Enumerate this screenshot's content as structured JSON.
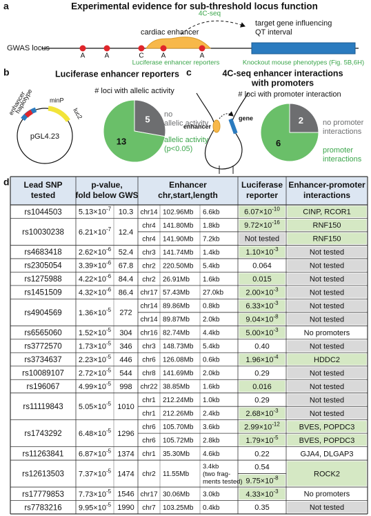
{
  "panel_a": {
    "label": "a",
    "title": "Experimental evidence for sub-threshold locus function",
    "gwas_locus": "GWAS locus",
    "alleles": [
      "A",
      "A",
      "C",
      "A",
      "A"
    ],
    "enhancer": "cardiac enhancer",
    "fourc": "4C-seq",
    "target": [
      "target gene influencing",
      "QT interval"
    ],
    "luc_label": "Luciferase enhancer reporters",
    "ko_label": "Knockout mouse phenotypes (Fig. 5B,6H)"
  },
  "panel_b": {
    "label": "b",
    "title": "Luciferase enhancer reporters",
    "plasmid": {
      "enhancer": [
        "enhancer",
        "haplotype"
      ],
      "minp": "minP",
      "luc2": "luc2",
      "name": "pGL4.23"
    },
    "pie": {
      "title": "# loci with allelic activity",
      "values": [
        5,
        13
      ],
      "colors": [
        "#6d6e70",
        "#6abf69"
      ],
      "labels": [
        [
          "no",
          "allelic activity"
        ],
        [
          "allelic activity",
          "(p<0.05)"
        ]
      ],
      "label_colors": [
        "#6d6e70",
        "#3aa54a"
      ]
    }
  },
  "panel_c": {
    "label": "c",
    "title": [
      "4C-seq enhancer interactions",
      "with promoters"
    ],
    "enhancer": "enhancer",
    "gene": "gene",
    "pie": {
      "title": "# loci with promoter interaction",
      "values": [
        2,
        6
      ],
      "colors": [
        "#6d6e70",
        "#6abf69"
      ],
      "labels": [
        [
          "no promoter",
          "interactions"
        ],
        [
          "promoter",
          "interactions"
        ]
      ],
      "label_colors": [
        "#6d6e70",
        "#3aa54a"
      ]
    }
  },
  "panel_d": {
    "label": "d",
    "headers": [
      [
        "Lead SNP",
        "tested"
      ],
      [
        "p-value,",
        "fold below GWS"
      ],
      [
        "Enhancer",
        "chr,start,length"
      ],
      [
        "Luciferase",
        "reporter"
      ],
      [
        "Enhancer-promoter",
        "interactions"
      ]
    ],
    "rows": [
      {
        "snp": "rs1044503",
        "p": [
          "5.13×10",
          "-7"
        ],
        "fold": 10.3,
        "sub": [
          {
            "chr": "chr14",
            "start": "102.96Mb",
            "length": "6.6kb",
            "luc": [
              {
                "value": [
                  "6.07×10",
                  "-10"
                ],
                "fill": "#d5e8c4"
              }
            ],
            "int": {
              "text": "CINP, RCOR1",
              "fill": "#d5e8c4"
            }
          }
        ]
      },
      {
        "snp": "rs10030238",
        "p": [
          "6.21×10",
          "-7"
        ],
        "fold": 12.4,
        "sub": [
          {
            "chr": "chr4",
            "start": "141.80Mb",
            "length": "1.8kb",
            "luc": [
              {
                "value": [
                  "9.72×10",
                  "-16"
                ],
                "fill": "#d5e8c4"
              }
            ],
            "int": {
              "text": "RNF150",
              "fill": "#d5e8c4"
            }
          },
          {
            "chr": "chr4",
            "start": "141.90Mb",
            "length": "7.2kb",
            "luc": [
              {
                "value": "Not tested",
                "fill": "#d9d9d9"
              }
            ],
            "int": {
              "text": "RNF150",
              "fill": "#d5e8c4"
            }
          }
        ]
      },
      {
        "snp": "rs4683418",
        "p": [
          "2.62×10",
          "-6"
        ],
        "fold": 52.4,
        "sub": [
          {
            "chr": "chr3",
            "start": "141.74Mb",
            "length": "1.4kb",
            "luc": [
              {
                "value": [
                  "1.10×10",
                  "-3"
                ],
                "fill": "#d5e8c4"
              }
            ],
            "int": {
              "text": "Not tested",
              "fill": "#d9d9d9"
            }
          }
        ]
      },
      {
        "snp": "rs2305054",
        "p": [
          "3.39×10",
          "-6"
        ],
        "fold": 67.8,
        "sub": [
          {
            "chr": "chr2",
            "start": "220.50Mb",
            "length": "5.4kb",
            "luc": [
              {
                "value": "0.064",
                "fill": "#ffffff"
              }
            ],
            "int": {
              "text": "Not tested",
              "fill": "#d9d9d9"
            }
          }
        ]
      },
      {
        "snp": "rs1275988",
        "p": [
          "4.22×10",
          "-6"
        ],
        "fold": 84.4,
        "sub": [
          {
            "chr": "chr2",
            "start": "26.91Mb",
            "length": "1.6kb",
            "luc": [
              {
                "value": "0.015",
                "fill": "#d5e8c4"
              }
            ],
            "int": {
              "text": "Not tested",
              "fill": "#d9d9d9"
            }
          }
        ]
      },
      {
        "snp": "rs1451509",
        "p": [
          "4.32×10",
          "-6"
        ],
        "fold": 86.4,
        "sub": [
          {
            "chr": "chr17",
            "start": "57.43Mb",
            "length": "27.0kb",
            "luc": [
              {
                "value": [
                  "2.00×10",
                  "-3"
                ],
                "fill": "#d5e8c4"
              }
            ],
            "int": {
              "text": "Not tested",
              "fill": "#d9d9d9"
            }
          }
        ]
      },
      {
        "snp": "rs4904569",
        "p": [
          "1.36×10",
          "-5"
        ],
        "fold": 272,
        "sub": [
          {
            "chr": "chr14",
            "start": "89.86Mb",
            "length": "0.8kb",
            "luc": [
              {
                "value": [
                  "6.33×10",
                  "-3"
                ],
                "fill": "#d5e8c4"
              }
            ],
            "int": {
              "text": "Not tested",
              "fill": "#d9d9d9"
            }
          },
          {
            "chr": "chr14",
            "start": "89.87Mb",
            "length": "2.0kb",
            "luc": [
              {
                "value": [
                  "9.04×10",
                  "-8"
                ],
                "fill": "#d5e8c4"
              }
            ],
            "int": {
              "text": "Not tested",
              "fill": "#d9d9d9"
            }
          }
        ]
      },
      {
        "snp": "rs6565060",
        "p": [
          "1.52×10",
          "-5"
        ],
        "fold": 304,
        "sub": [
          {
            "chr": "chr16",
            "start": "82.74Mb",
            "length": "4.4kb",
            "luc": [
              {
                "value": [
                  "5.00×10",
                  "-3"
                ],
                "fill": "#d5e8c4"
              }
            ],
            "int": {
              "text": "No promoters",
              "fill": "#ffffff"
            }
          }
        ]
      },
      {
        "snp": "rs3772570",
        "p": [
          "1.73×10",
          "-5"
        ],
        "fold": 346,
        "sub": [
          {
            "chr": "chr3",
            "start": "148.73Mb",
            "length": "5.4kb",
            "luc": [
              {
                "value": "0.40",
                "fill": "#ffffff"
              }
            ],
            "int": {
              "text": "Not tested",
              "fill": "#d9d9d9"
            }
          }
        ]
      },
      {
        "snp": "rs3734637",
        "p": [
          "2.23×10",
          "-5"
        ],
        "fold": 446,
        "sub": [
          {
            "chr": "chr6",
            "start": "126.08Mb",
            "length": "0.6kb",
            "luc": [
              {
                "value": [
                  "1.96×10",
                  "-4"
                ],
                "fill": "#d5e8c4"
              }
            ],
            "int": {
              "text": "HDDC2",
              "fill": "#d5e8c4"
            }
          }
        ]
      },
      {
        "snp": "rs10089107",
        "p": [
          "2.72×10",
          "-5"
        ],
        "fold": 544,
        "sub": [
          {
            "chr": "chr8",
            "start": "141.69Mb",
            "length": "2.0kb",
            "luc": [
              {
                "value": "0.29",
                "fill": "#ffffff"
              }
            ],
            "int": {
              "text": "Not tested",
              "fill": "#d9d9d9"
            }
          }
        ]
      },
      {
        "snp": "rs196067",
        "p": [
          "4.99×10",
          "-5"
        ],
        "fold": 998,
        "sub": [
          {
            "chr": "chr22",
            "start": "38.85Mb",
            "length": "1.6kb",
            "luc": [
              {
                "value": "0.016",
                "fill": "#d5e8c4"
              }
            ],
            "int": {
              "text": "Not tested",
              "fill": "#d9d9d9"
            }
          }
        ]
      },
      {
        "snp": "rs11119843",
        "p": [
          "5.05×10",
          "-5"
        ],
        "fold": 1010,
        "sub": [
          {
            "chr": "chr1",
            "start": "212.24Mb",
            "length": "1.0kb",
            "luc": [
              {
                "value": "0.29",
                "fill": "#ffffff"
              }
            ],
            "int": {
              "text": "Not tested",
              "fill": "#d9d9d9"
            }
          },
          {
            "chr": "chr1",
            "start": "212.26Mb",
            "length": "2.4kb",
            "luc": [
              {
                "value": [
                  "2.68×10",
                  "-3"
                ],
                "fill": "#d5e8c4"
              }
            ],
            "int": {
              "text": "Not tested",
              "fill": "#d9d9d9"
            }
          }
        ]
      },
      {
        "snp": "rs1743292",
        "p": [
          "6.48×10",
          "-5"
        ],
        "fold": 1296,
        "sub": [
          {
            "chr": "chr6",
            "start": "105.70Mb",
            "length": "3.6kb",
            "luc": [
              {
                "value": [
                  "2.99×10",
                  "-12"
                ],
                "fill": "#d5e8c4"
              }
            ],
            "int": {
              "text": "BVES, POPDC3",
              "fill": "#d5e8c4"
            }
          },
          {
            "chr": "chr6",
            "start": "105.72Mb",
            "length": "2.8kb",
            "luc": [
              {
                "value": [
                  "1.79×10",
                  "-5"
                ],
                "fill": "#d5e8c4"
              }
            ],
            "int": {
              "text": "BVES, POPDC3",
              "fill": "#d5e8c4"
            }
          }
        ]
      },
      {
        "snp": "rs11263841",
        "p": [
          "6.87×10",
          "-5"
        ],
        "fold": 1374,
        "sub": [
          {
            "chr": "chr1",
            "start": "35.30Mb",
            "length": "4.6kb",
            "luc": [
              {
                "value": "0.22",
                "fill": "#ffffff"
              }
            ],
            "int": {
              "text": "GJA4, DLGAP3",
              "fill": "#ffffff"
            }
          }
        ]
      },
      {
        "snp": "rs12613503",
        "p": [
          "7.37×10",
          "-5"
        ],
        "fold": 1474,
        "sub": [
          {
            "chr": "chr2",
            "start": "11.55Mb",
            "length": [
              "3.4kb",
              "(two frag-",
              "ments tested)"
            ],
            "luc": [
              {
                "value": "0.54",
                "fill": "#ffffff"
              },
              {
                "value": [
                  "9.75×10",
                  "-8"
                ],
                "fill": "#d5e8c4"
              }
            ],
            "int": {
              "text": "ROCK2",
              "fill": "#d5e8c4"
            }
          }
        ]
      },
      {
        "snp": "rs17779853",
        "p": [
          "7.73×10",
          "-5"
        ],
        "fold": 1546,
        "sub": [
          {
            "chr": "chr17",
            "start": "30.06Mb",
            "length": "3.0kb",
            "luc": [
              {
                "value": [
                  "4.33×10",
                  "-3"
                ],
                "fill": "#d5e8c4"
              }
            ],
            "int": {
              "text": "No promoters",
              "fill": "#ffffff"
            }
          }
        ]
      },
      {
        "snp": "rs7783216",
        "p": [
          "9.95×10",
          "-5"
        ],
        "fold": 1990,
        "sub": [
          {
            "chr": "chr7",
            "start": "103.25Mb",
            "length": "0.4kb",
            "luc": [
              {
                "value": "0.35",
                "fill": "#ffffff"
              }
            ],
            "int": {
              "text": "Not tested",
              "fill": "#d9d9d9"
            }
          }
        ]
      }
    ]
  }
}
